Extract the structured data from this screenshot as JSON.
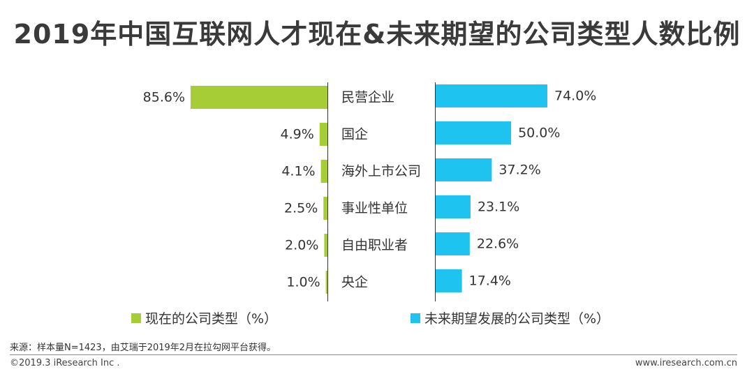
{
  "title": "2019年中国互联网人才现在&未来期望的公司类型人数比例",
  "colors": {
    "current": "#a6cd35",
    "future": "#1ec4ef"
  },
  "chart_data": {
    "type": "bar",
    "orientation": "horizontal-diverging",
    "categories": [
      "民营企业",
      "国企",
      "海外上市公司",
      "事业性单位",
      "自由职业者",
      "央企"
    ],
    "series": [
      {
        "name": "现在的公司类型（%）",
        "values": [
          85.6,
          4.9,
          4.1,
          2.5,
          2.0,
          1.0
        ],
        "labels": [
          "85.6%",
          "4.9%",
          "4.1%",
          "2.5%",
          "2.0%",
          "1.0%"
        ]
      },
      {
        "name": "未来期望发展的公司类型（%）",
        "values": [
          74.0,
          50.0,
          37.2,
          23.1,
          22.6,
          17.4
        ],
        "labels": [
          "74.0%",
          "50.0%",
          "37.2%",
          "23.1%",
          "22.6%",
          "17.4%"
        ]
      }
    ],
    "legend_position": "bottom",
    "grid": false
  },
  "legend": {
    "current": "现在的公司类型（%）",
    "future": "未来期望发展的公司类型（%）"
  },
  "source": "来源：样本量N=1423，由艾瑞于2019年2月在拉勾网平台获得。",
  "copyright": "©2019.3 iResearch Inc .",
  "site": "www.iresearch.com.cn"
}
